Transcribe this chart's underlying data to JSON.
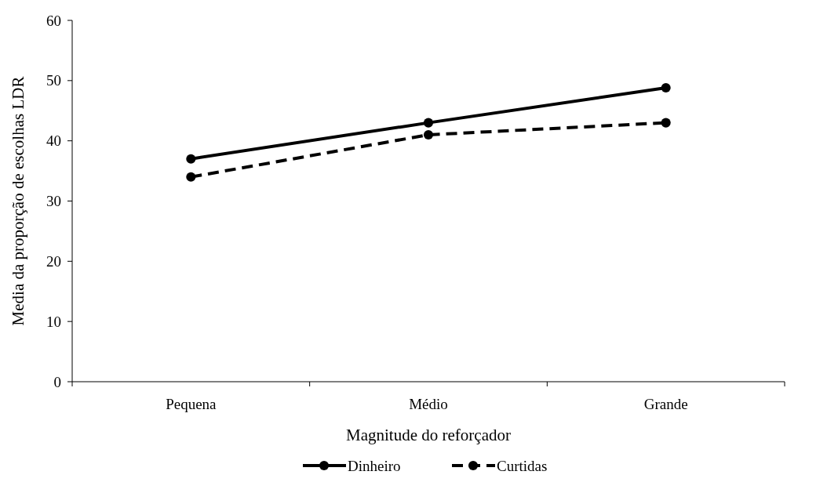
{
  "chart_data": {
    "type": "line",
    "xlabel": "Magnitude do reforçador",
    "ylabel": "Media da proporção de escolhas LDR",
    "categories": [
      "Pequena",
      "Médio",
      "Grande"
    ],
    "series": [
      {
        "name": "Dinheiro",
        "color": "#000000",
        "values": [
          37,
          43,
          48.8
        ],
        "line_style": "solid"
      },
      {
        "name": "Curtidas",
        "color": "#000000",
        "values": [
          34,
          41,
          43
        ],
        "line_style": "dashed"
      }
    ],
    "ylim": [
      0,
      60
    ],
    "yticks": [
      0,
      10,
      20,
      30,
      40,
      50,
      60
    ],
    "grid": false,
    "legend": "bottom",
    "marker": "circle"
  }
}
